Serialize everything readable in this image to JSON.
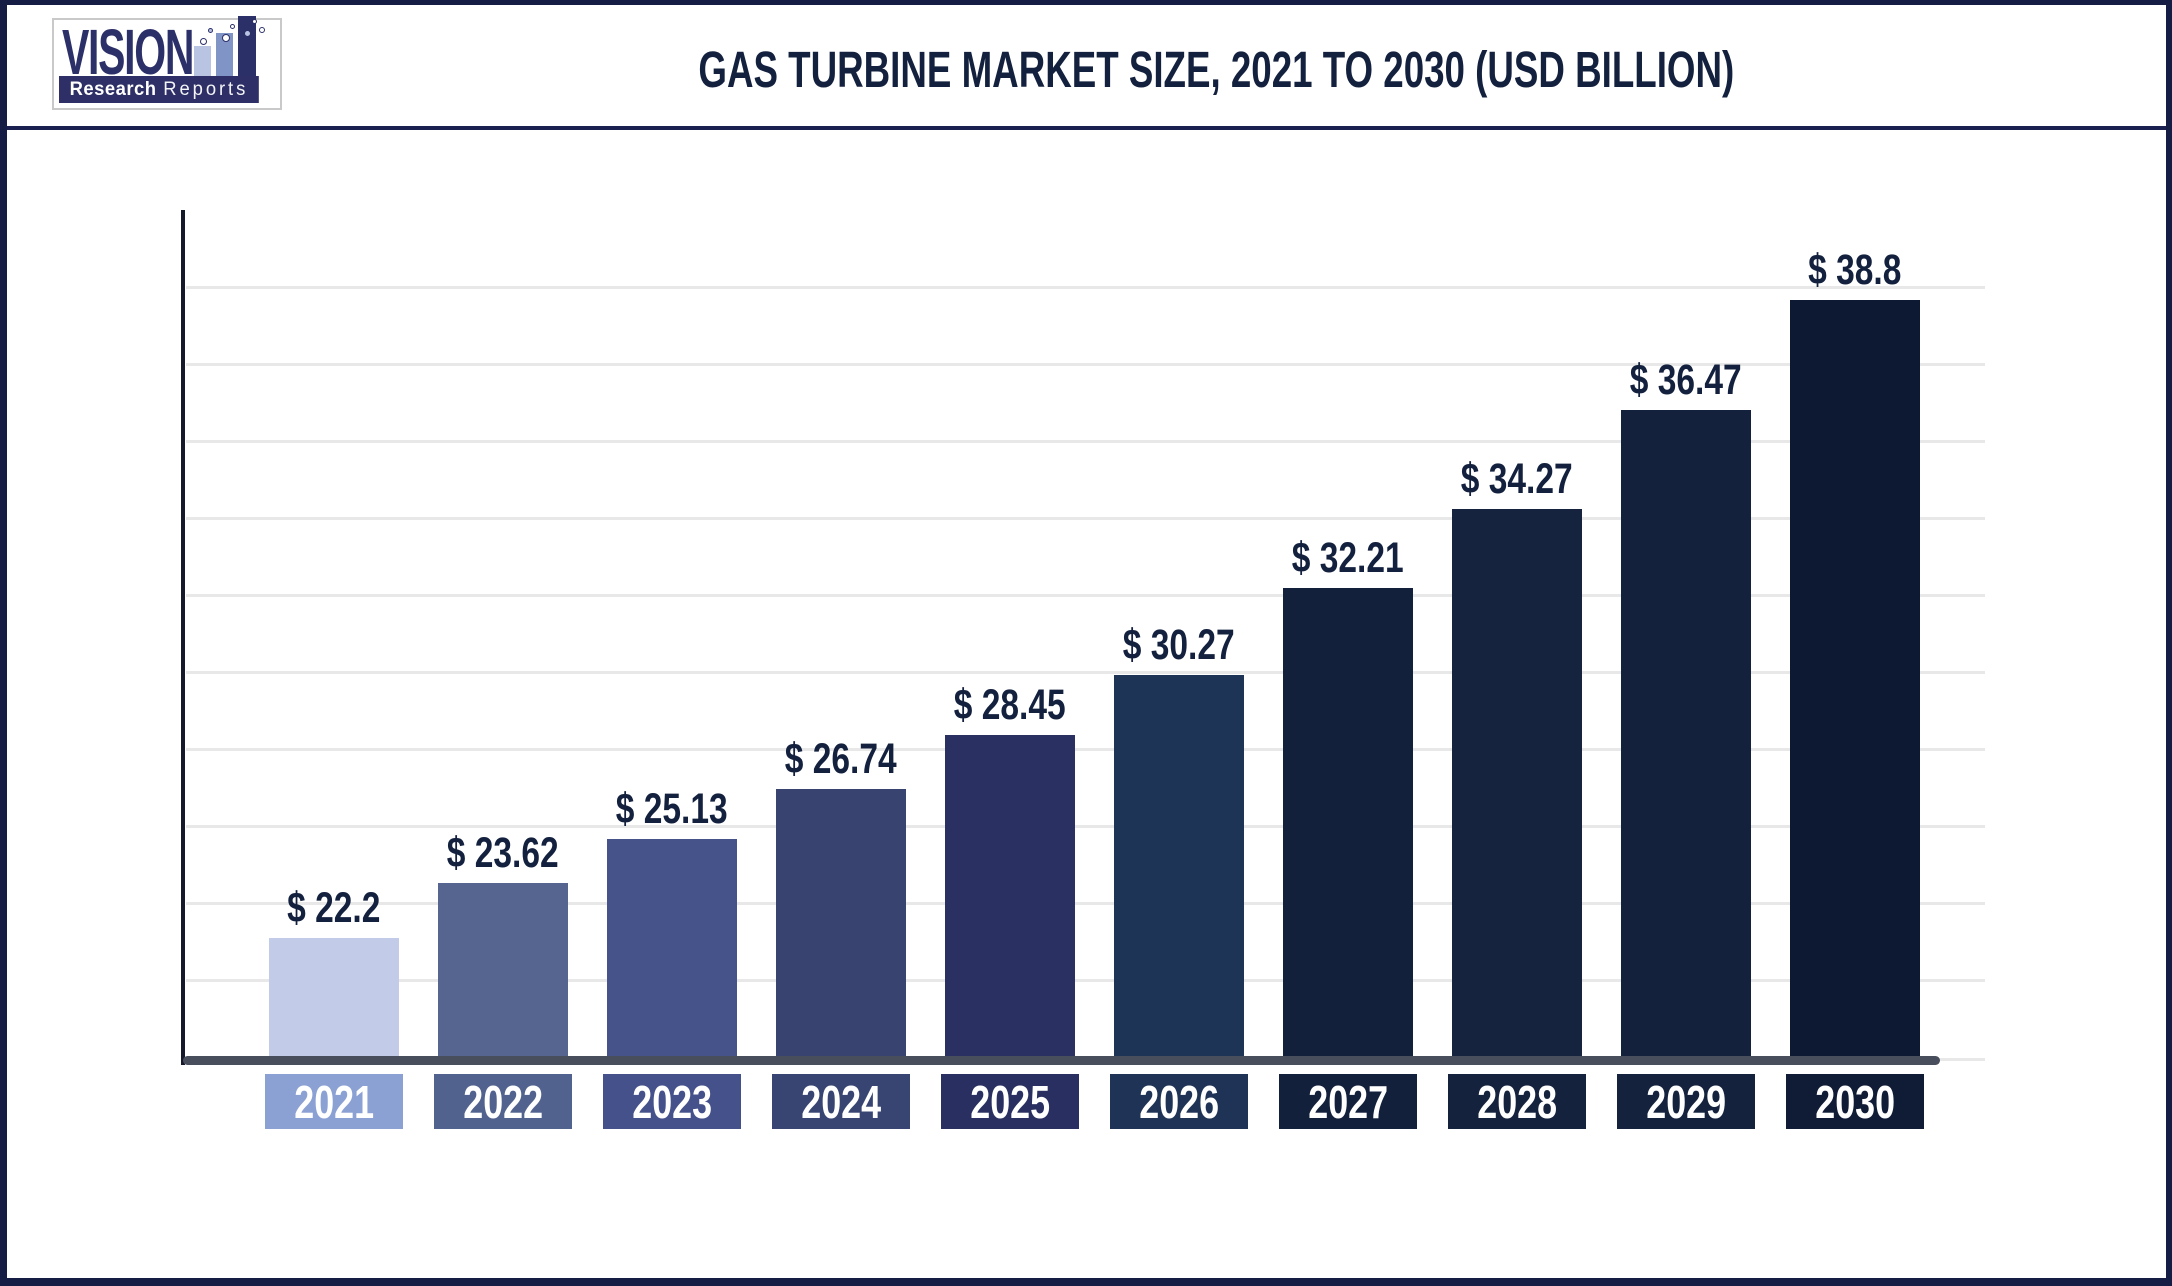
{
  "page": {
    "border_color": "#161d44",
    "divider_color": "#1a2150",
    "background": "#ffffff"
  },
  "header": {
    "title": "GAS TURBINE MARKET SIZE, 2021 TO 2030 (USD BILLION)",
    "title_color": "#13213e",
    "logo": {
      "brand": "VISION",
      "tagline_bold": "Research",
      "tagline_light": "Reports",
      "brand_color": "#2c3069",
      "banner_color": "#2d2f66",
      "icon_bar_colors": [
        "#b9c4e2",
        "#8094c5",
        "#2c3069"
      ]
    }
  },
  "chart_data": {
    "type": "bar",
    "title": "GAS TURBINE MARKET SIZE, 2021 TO 2030 (USD BILLION)",
    "unit": "USD Billion",
    "categories": [
      "2021",
      "2022",
      "2023",
      "2024",
      "2025",
      "2026",
      "2027",
      "2028",
      "2029",
      "2030"
    ],
    "values": [
      22.2,
      23.62,
      25.13,
      26.74,
      28.45,
      30.27,
      32.21,
      34.27,
      36.47,
      38.8
    ],
    "value_labels": [
      "$ 22.2",
      "$ 23.62",
      "$ 25.13",
      "$ 26.74",
      "$ 28.45",
      "$ 30.27",
      "$ 32.21",
      "$ 34.27",
      "$ 36.47",
      "$ 38.8"
    ],
    "bar_colors": [
      "#c2cbe7",
      "#55658f",
      "#46538a",
      "#38436f",
      "#2a3162",
      "#1e3456",
      "#13203c",
      "#16233e",
      "#14213c",
      "#0d1832"
    ],
    "tick_box_colors": [
      "#8ba0d3",
      "#52628e",
      "#45518a",
      "#384572",
      "#293061",
      "#1e3355",
      "#13203c",
      "#15223d",
      "#14223e",
      "#101c36"
    ],
    "xlabel": "",
    "ylabel": "",
    "legend": "none",
    "grid": "horizontal",
    "gridline_color": "#e8e8e8",
    "axis_bar_color": "#494e5c",
    "y_axis_color": "#151a2b",
    "label_color": "#13213e",
    "value_prefix": "$",
    "baseline_note": "bars drawn from a non-zero visual baseline (~19-20 USD Bn at axis)"
  }
}
